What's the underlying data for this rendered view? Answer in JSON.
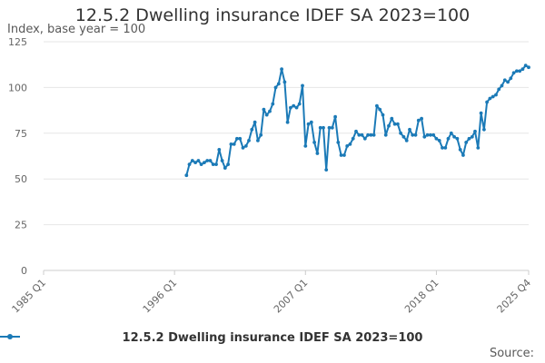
{
  "chart_data": {
    "type": "line",
    "title": "12.5.2 Dwelling insurance IDEF SA 2023=100",
    "ylabel": "Index, base year = 100",
    "xlabel": "",
    "ylim": [
      0,
      125
    ],
    "yticks": [
      0,
      25,
      50,
      75,
      100,
      125
    ],
    "x_tick_labels": [
      "1985 Q1",
      "1996 Q1",
      "2007 Q1",
      "2018 Q1",
      "2025 Q4"
    ],
    "x_range": [
      "1985 Q1",
      "2025 Q4"
    ],
    "grid": "horizontal",
    "legend_position": "bottom",
    "color": "#1b7ab7",
    "source_text": "Source:",
    "series": [
      {
        "name": "12.5.2 Dwelling insurance IDEF SA 2023=100",
        "start": "1997 Q1",
        "values": [
          52,
          58,
          60,
          59,
          60,
          58,
          59,
          60,
          60,
          58,
          58,
          66,
          60,
          56,
          58,
          69,
          69,
          72,
          72,
          67,
          68,
          71,
          77,
          81,
          71,
          74,
          88,
          85,
          87,
          91,
          100,
          102,
          110,
          103,
          81,
          89,
          90,
          89,
          91,
          101,
          68,
          80,
          81,
          70,
          64,
          78,
          78,
          55,
          78,
          78,
          84,
          70,
          63,
          63,
          68,
          69,
          72,
          76,
          74,
          74,
          72,
          74,
          74,
          74,
          90,
          88,
          85,
          74,
          79,
          83,
          80,
          80,
          75,
          73,
          71,
          77,
          74,
          74,
          82,
          83,
          73,
          74,
          74,
          74,
          72,
          71,
          67,
          67,
          72,
          75,
          73,
          72,
          66,
          63,
          70,
          72,
          73,
          76,
          67,
          86,
          77,
          92,
          94,
          95,
          96,
          99,
          101,
          104,
          103,
          105,
          108,
          109,
          109,
          110,
          112,
          111
        ]
      }
    ]
  }
}
